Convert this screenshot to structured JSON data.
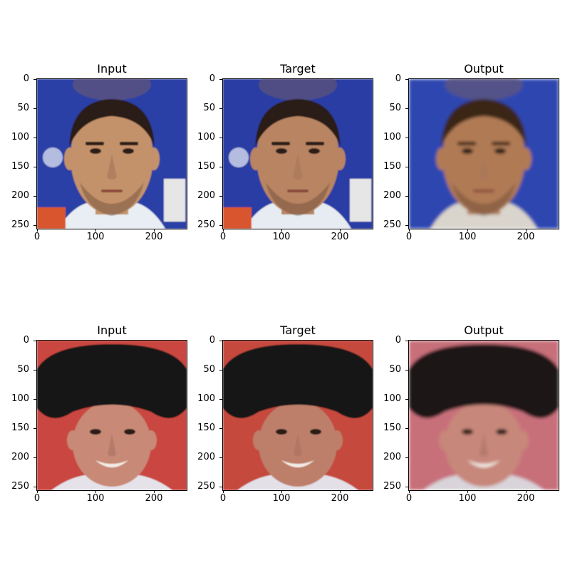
{
  "figure": {
    "rows": [
      {
        "panels": [
          {
            "title": "Input",
            "bg": "#2b3fa6",
            "hair": "#2a1d16",
            "skin": "#c4926b",
            "shirt": "#e8eef3",
            "blur": false
          },
          {
            "title": "Target",
            "bg": "#2a3ea4",
            "hair": "#2b1e17",
            "skin": "#b88462",
            "shirt": "#e6ecf1",
            "blur": false
          },
          {
            "title": "Output",
            "bg": "#2e46b0",
            "hair": "#3a2518",
            "skin": "#b07a55",
            "shirt": "#d9d4cc",
            "blur": true
          }
        ]
      },
      {
        "panels": [
          {
            "title": "Input",
            "bg": "#c9463f",
            "hair": "#121212",
            "skin": "#c88a76",
            "shirt": "#e5e2ea",
            "blur": false
          },
          {
            "title": "Target",
            "bg": "#c54a3d",
            "hair": "#151515",
            "skin": "#bd7f6a",
            "shirt": "#e3e0e8",
            "blur": false
          },
          {
            "title": "Output",
            "bg": "#c8707a",
            "hair": "#1b1717",
            "skin": "#c7877a",
            "shirt": "#d8d4d9",
            "blur": true
          }
        ]
      }
    ],
    "y_ticks": [
      "0",
      "50",
      "100",
      "150",
      "200",
      "250"
    ],
    "x_ticks": [
      "0",
      "100",
      "200"
    ]
  }
}
